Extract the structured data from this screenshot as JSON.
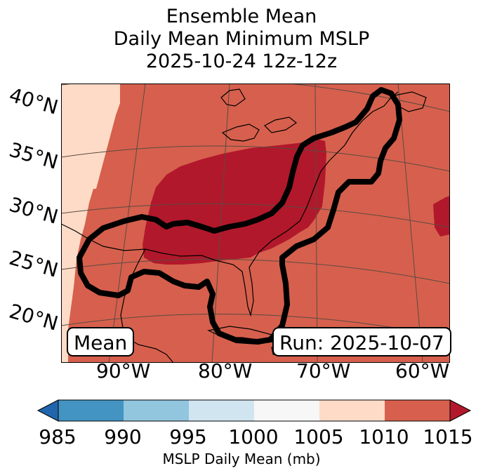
{
  "title": {
    "line1": "Ensemble Mean",
    "line2": "Daily Mean Minimum MSLP",
    "line3": "2025-10-24 12z-12z"
  },
  "map": {
    "lat_labels": [
      "40°N",
      "35°N",
      "30°N",
      "25°N",
      "20°N"
    ],
    "lon_labels": [
      "90°W",
      "80°W",
      "70°W",
      "60°W"
    ],
    "mean_label": "Mean",
    "run_label": "Run: 2025-10-07",
    "colors": {
      "high_1015_plus": "#b2182b",
      "mid_1010_1015": "#d6604d",
      "low_1005_1010": "#fddbc7",
      "contour": "#000000",
      "grid": "#5a4a42"
    }
  },
  "colorbar": {
    "label": "MSLP Daily Mean (mb)",
    "ticks": [
      "985",
      "990",
      "995",
      "1000",
      "1005",
      "1010",
      "1015"
    ],
    "bins": [
      {
        "range": "985-990",
        "color": "#4393c3"
      },
      {
        "range": "990-995",
        "color": "#92c5de"
      },
      {
        "range": "995-1000",
        "color": "#d1e5f0"
      },
      {
        "range": "1000-1005",
        "color": "#f7f7f7"
      },
      {
        "range": "1005-1010",
        "color": "#fddbc7"
      },
      {
        "range": "1010-1015",
        "color": "#d6604d"
      }
    ],
    "under_color": "#2166ac",
    "over_color": "#b2182b"
  }
}
